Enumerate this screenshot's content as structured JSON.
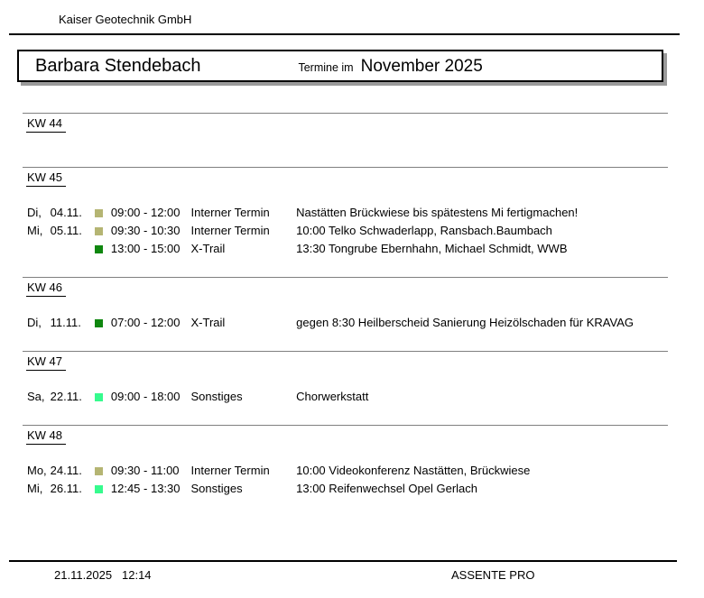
{
  "company": "Kaiser Geotechnik GmbH",
  "title": {
    "person": "Barbara Stendebach",
    "prefix": "Termine im",
    "month": "November 2025"
  },
  "category_colors": {
    "Interner Termin": "#b5b573",
    "X-Trail": "#0f870f",
    "Sonstiges": "#36fb8e"
  },
  "sections": [
    {
      "kw": "KW 44",
      "appointments": []
    },
    {
      "kw": "KW 45",
      "appointments": [
        {
          "day": "Di,",
          "date": "04.11.",
          "color": "#b5b573",
          "time": "09:00 - 12:00",
          "category": "Interner Termin",
          "description": "Nastätten Brückwiese bis spätestens Mi fertigmachen!"
        },
        {
          "day": "Mi,",
          "date": "05.11.",
          "color": "#b5b573",
          "time": "09:30 - 10:30",
          "category": "Interner Termin",
          "description": "10:00 Telko Schwaderlapp, Ransbach.Baumbach"
        },
        {
          "day": "",
          "date": "",
          "color": "#0f870f",
          "time": "13:00 - 15:00",
          "category": "X-Trail",
          "description": "13:30 Tongrube Ebernhahn, Michael Schmidt, WWB"
        }
      ]
    },
    {
      "kw": "KW 46",
      "appointments": [
        {
          "day": "Di,",
          "date": "11.11.",
          "color": "#0f870f",
          "time": "07:00 - 12:00",
          "category": "X-Trail",
          "description": "gegen 8:30 Heilberscheid Sanierung Heizölschaden für KRAVAG"
        }
      ]
    },
    {
      "kw": "KW 47",
      "appointments": [
        {
          "day": "Sa,",
          "date": "22.11.",
          "color": "#36fb8e",
          "time": "09:00 - 18:00",
          "category": "Sonstiges",
          "description": "Chorwerkstatt"
        }
      ]
    },
    {
      "kw": "KW 48",
      "appointments": [
        {
          "day": "Mo,",
          "date": "24.11.",
          "color": "#b5b573",
          "time": "09:30 - 11:00",
          "category": "Interner Termin",
          "description": "10:00 Videokonferenz Nastätten, Brückwiese"
        },
        {
          "day": "Mi,",
          "date": "26.11.",
          "color": "#36fb8e",
          "time": "12:45 - 13:30",
          "category": "Sonstiges",
          "description": "13:00 Reifenwechsel Opel Gerlach"
        }
      ]
    }
  ],
  "footer": {
    "date": "21.11.2025",
    "time": "12:14",
    "app": "ASSENTE PRO"
  }
}
